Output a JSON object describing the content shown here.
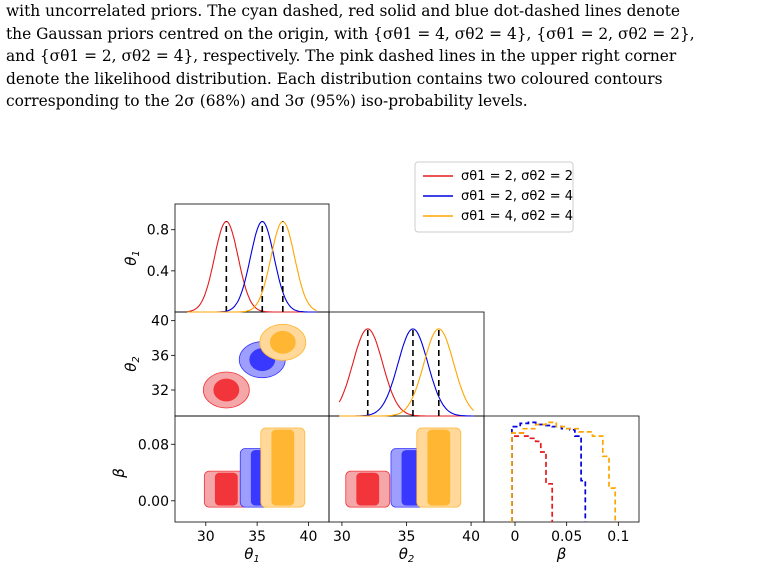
{
  "caption": {
    "lines": [
      "with uncorrelated priors. The cyan dashed, red solid and blue dot-dashed lines denote",
      "the Gaussan priors centred on the origin, with {σθ1 = 4, σθ2 = 4}, {σθ1 = 2, σθ2 = 2},",
      "and {σθ1 = 2, σθ2 = 4}, respectively. The pink dashed lines in the upper right corner",
      "denote the likelihood distribution. Each distribution contains two coloured contours",
      "corresponding to the 2σ (68%) and 3σ (95%) iso-probability levels."
    ]
  },
  "chart_data": {
    "type": "corner",
    "legend": [
      {
        "label": "σθ1 = 2, σθ2 = 2",
        "color": "#e41a1c"
      },
      {
        "label": "σθ1 = 2, σθ2 = 4",
        "color": "#0000e0"
      },
      {
        "label": "σθ1 = 4, σθ2 = 4",
        "color": "#ffa500"
      }
    ],
    "legend_position": "top-right",
    "axes": {
      "theta1": {
        "label": "θ1",
        "range": [
          27,
          42
        ],
        "ticks": [
          30,
          35,
          40
        ]
      },
      "theta2": {
        "label": "θ2",
        "range": [
          29,
          41
        ],
        "ticks": [
          32,
          36,
          40
        ],
        "ticks_bottom": [
          30,
          35,
          40
        ]
      },
      "beta": {
        "label": "β",
        "range": [
          -0.03,
          0.12
        ],
        "ticks": [
          0.0,
          0.08
        ],
        "ticks_bottom": [
          0,
          0.05,
          0.1
        ]
      },
      "theta1_density": {
        "range": [
          0,
          1.05
        ],
        "ticks": [
          0.4,
          0.8
        ]
      }
    },
    "series": [
      {
        "name": "σθ1 = 2, σθ2 = 2",
        "color": "#e41a1c",
        "theta1_mean": 32,
        "theta1_sigma": 1.15,
        "theta2_mean": 32,
        "theta2_sigma": 1.15,
        "beta_range": [
          -0.003,
          0.036
        ],
        "beta_hist": {
          "x": [
            -0.003,
            0.003,
            0.008,
            0.014,
            0.02,
            0.025,
            0.03,
            0.036
          ],
          "h": [
            0.81,
            0.84,
            0.81,
            0.79,
            0.76,
            0.66,
            0.36,
            0.0
          ]
        }
      },
      {
        "name": "σθ1 = 2, σθ2 = 4",
        "color": "#0000e0",
        "theta1_mean": 35.5,
        "theta1_sigma": 1.15,
        "theta2_mean": 35.5,
        "theta2_sigma": 1.15,
        "beta_range": [
          -0.003,
          0.068
        ],
        "beta_hist": {
          "x": [
            -0.003,
            0.005,
            0.013,
            0.02,
            0.028,
            0.036,
            0.045,
            0.053,
            0.058,
            0.064,
            0.068
          ],
          "h": [
            0.9,
            0.93,
            0.94,
            0.92,
            0.91,
            0.9,
            0.88,
            0.87,
            0.81,
            0.39,
            0.0
          ]
        }
      },
      {
        "name": "σθ1 = 4, σθ2 = 4",
        "color": "#ffa500",
        "theta1_mean": 37.5,
        "theta1_sigma": 1.15,
        "theta2_mean": 37.5,
        "theta2_sigma": 1.15,
        "beta_range": [
          -0.003,
          0.097
        ],
        "beta_hist": {
          "x": [
            -0.003,
            0.008,
            0.02,
            0.03,
            0.04,
            0.05,
            0.062,
            0.075,
            0.085,
            0.091,
            0.097
          ],
          "h": [
            0.84,
            0.88,
            0.92,
            0.94,
            0.9,
            0.88,
            0.85,
            0.81,
            0.62,
            0.32,
            0.0
          ]
        }
      }
    ]
  }
}
